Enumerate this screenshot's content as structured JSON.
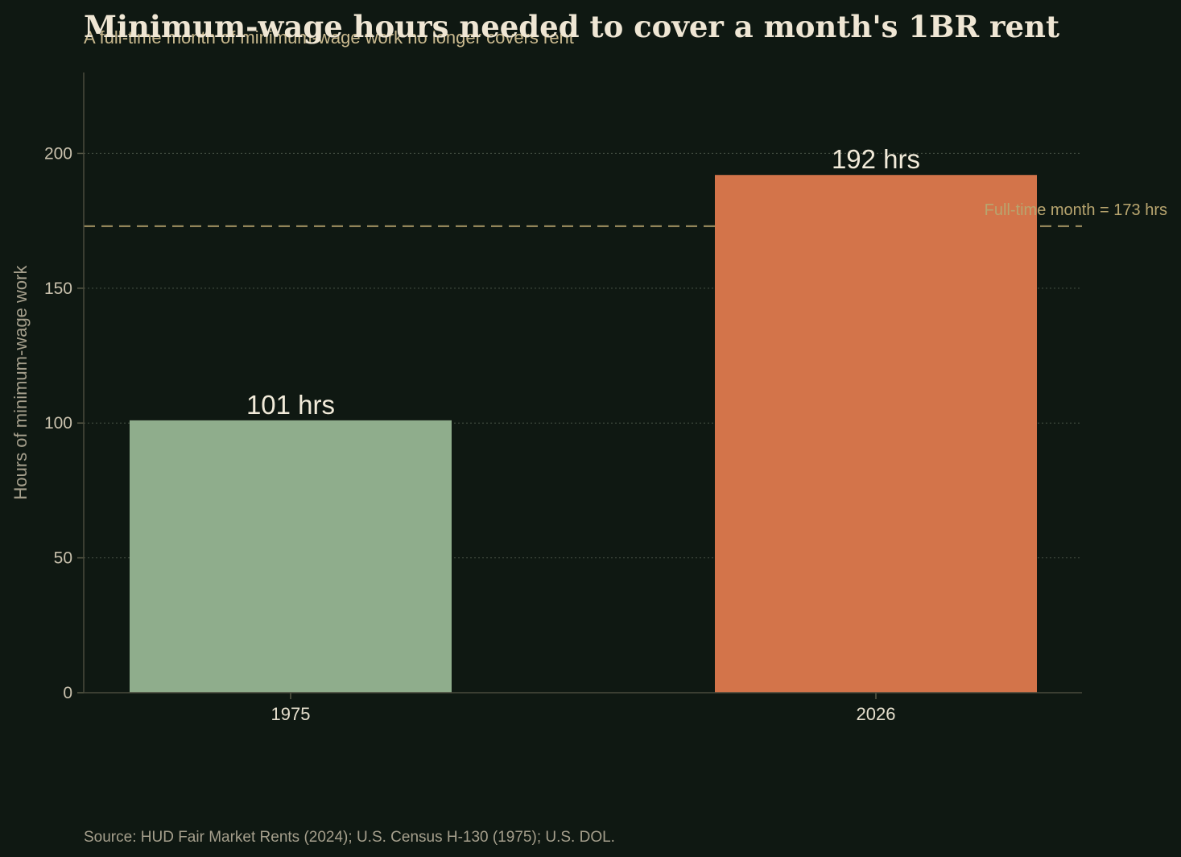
{
  "chart_data": {
    "type": "bar",
    "title": "Minimum-wage hours needed to cover a month's 1BR rent",
    "subtitle": "A full-time month of minimum-wage work no longer covers rent",
    "ylabel": "Hours of minimum-wage work",
    "xlabel": "",
    "categories": [
      "1975",
      "2026"
    ],
    "values": [
      101,
      192
    ],
    "data_labels": [
      "101 hrs",
      "192 hrs"
    ],
    "bar_colors": [
      "#8fad8c",
      "#d3744a"
    ],
    "ylim": [
      0,
      230
    ],
    "yticks": [
      0,
      50,
      100,
      150,
      200
    ],
    "grid": "horizontal-dotted",
    "reference_line": {
      "value": 173,
      "label": "Full-time month = 173 hrs",
      "color": "#b8a56f",
      "style": "dashed"
    },
    "source": "Source: HUD Fair Market Rents (2024); U.S. Census H-130 (1975); U.S. DOL."
  }
}
